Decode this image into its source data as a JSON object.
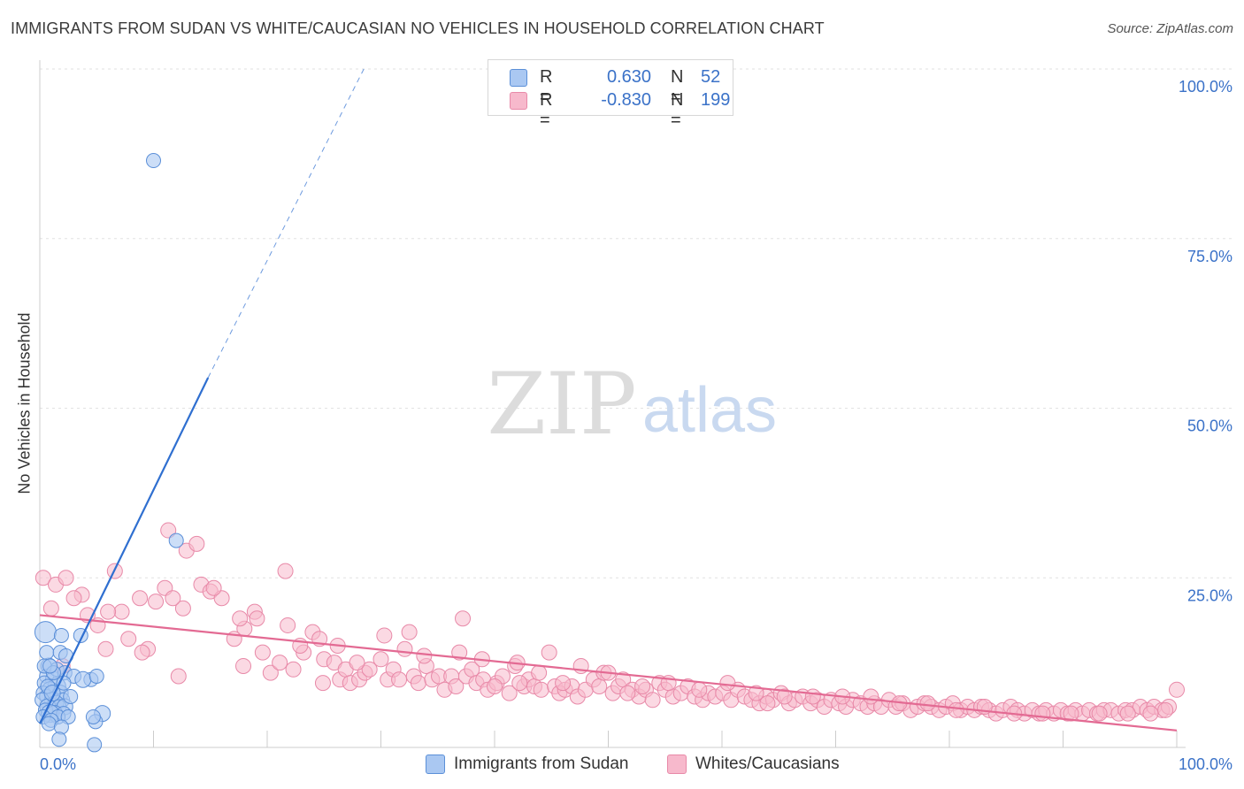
{
  "title": "IMMIGRANTS FROM SUDAN VS WHITE/CAUCASIAN NO VEHICLES IN HOUSEHOLD CORRELATION CHART",
  "source": "Source: ZipAtlas.com",
  "watermark": {
    "zip": "ZIP",
    "atlas": "atlas"
  },
  "colors": {
    "blue_fill": "#aac8f2",
    "blue_stroke": "#5b8fd8",
    "blue_line": "#2f6fd0",
    "pink_fill": "#f7b9cc",
    "pink_stroke": "#e889a8",
    "pink_line": "#e36a93",
    "axis_text": "#3b72c8",
    "grid": "#e2e2e2"
  },
  "legend": {
    "rows": [
      {
        "r_label": "R =",
        "r_value": "0.630",
        "n_label": "N =",
        "n_value": "52",
        "color": "#aac8f2"
      },
      {
        "r_label": "R =",
        "r_value": "-0.830",
        "n_label": "N =",
        "n_value": "199",
        "color": "#f7b9cc"
      }
    ]
  },
  "bottom_legend": [
    {
      "label": "Immigrants from Sudan",
      "color": "#aac8f2"
    },
    {
      "label": "Whites/Caucasians",
      "color": "#f7b9cc"
    }
  ],
  "chart_data": {
    "type": "scatter",
    "title": "IMMIGRANTS FROM SUDAN VS WHITE/CAUCASIAN NO VEHICLES IN HOUSEHOLD CORRELATION CHART",
    "xlabel": "",
    "ylabel": "No Vehicles in Household",
    "xlim": [
      0,
      100
    ],
    "ylim": [
      0,
      100
    ],
    "x_tick_labels": [
      "0.0%",
      "100.0%"
    ],
    "y_ticks": [
      25,
      50,
      75,
      100
    ],
    "y_tick_labels": [
      "25.0%",
      "50.0%",
      "75.0%",
      "100.0%"
    ],
    "grid": true,
    "series": [
      {
        "name": "Immigrants from Sudan",
        "r": 0.63,
        "n": 52,
        "trend": {
          "x0": 0.0,
          "y0": 3.5,
          "x1": 14.8,
          "y1": 54.5,
          "dash_x1": 28.5,
          "dash_y1": 100
        },
        "points": [
          [
            0.5,
            17.0,
            12
          ],
          [
            0.8,
            12.0,
            9
          ],
          [
            0.6,
            10.5,
            8
          ],
          [
            1.2,
            10.0,
            9
          ],
          [
            0.4,
            9.5,
            8
          ],
          [
            1.5,
            9.0,
            10
          ],
          [
            0.9,
            8.5,
            9
          ],
          [
            0.3,
            8.0,
            8
          ],
          [
            1.8,
            8.0,
            9
          ],
          [
            0.6,
            7.5,
            8
          ],
          [
            1.1,
            7.0,
            9
          ],
          [
            0.2,
            7.0,
            8
          ],
          [
            2.0,
            7.0,
            8
          ],
          [
            1.4,
            6.5,
            9
          ],
          [
            0.7,
            6.0,
            9
          ],
          [
            1.7,
            6.0,
            8
          ],
          [
            2.2,
            6.0,
            9
          ],
          [
            0.5,
            5.5,
            8
          ],
          [
            1.3,
            5.0,
            9
          ],
          [
            0.9,
            5.0,
            10
          ],
          [
            2.1,
            5.0,
            8
          ],
          [
            0.3,
            4.5,
            8
          ],
          [
            1.6,
            4.5,
            8
          ],
          [
            1.0,
            4.0,
            8
          ],
          [
            2.5,
            4.5,
            8
          ],
          [
            0.8,
            3.5,
            8
          ],
          [
            1.9,
            3.0,
            8
          ],
          [
            1.7,
            1.2,
            8
          ],
          [
            4.8,
            0.4,
            8
          ],
          [
            0.6,
            14.0,
            8
          ],
          [
            1.8,
            14.0,
            8
          ],
          [
            2.3,
            13.5,
            8
          ],
          [
            1.5,
            11.5,
            8
          ],
          [
            2.2,
            11.0,
            8
          ],
          [
            3.0,
            10.5,
            8
          ],
          [
            4.5,
            10.0,
            8
          ],
          [
            3.8,
            10.0,
            9
          ],
          [
            5.0,
            10.5,
            8
          ],
          [
            3.6,
            16.5,
            8
          ],
          [
            1.9,
            16.5,
            8
          ],
          [
            5.5,
            5.0,
            9
          ],
          [
            0.4,
            12.0,
            8
          ],
          [
            1.2,
            11.0,
            8
          ],
          [
            0.7,
            9.0,
            8
          ],
          [
            1.1,
            8.0,
            9
          ],
          [
            2.7,
            7.5,
            8
          ],
          [
            4.9,
            3.8,
            8
          ],
          [
            4.7,
            4.5,
            8
          ],
          [
            10.0,
            86.5,
            8
          ],
          [
            12.0,
            30.5,
            8
          ],
          [
            2.1,
            9.5,
            8
          ],
          [
            0.9,
            12.0,
            8
          ]
        ]
      },
      {
        "name": "Whites/Caucasians",
        "r": -0.83,
        "n": 199,
        "trend": {
          "x0": 0.0,
          "y0": 19.5,
          "x1": 100.0,
          "y1": 2.5
        },
        "points": [
          [
            0.3,
            25.0
          ],
          [
            1.4,
            24.0
          ],
          [
            2.3,
            25.0
          ],
          [
            3.7,
            22.5
          ],
          [
            5.1,
            18.0
          ],
          [
            6.6,
            26.0
          ],
          [
            7.2,
            20.0
          ],
          [
            8.8,
            22.0
          ],
          [
            9.5,
            14.5
          ],
          [
            10.2,
            21.5
          ],
          [
            11.0,
            23.5
          ],
          [
            11.3,
            32.0
          ],
          [
            12.6,
            20.5
          ],
          [
            12.9,
            29.0
          ],
          [
            13.8,
            30.0
          ],
          [
            14.2,
            24.0
          ],
          [
            15.0,
            23.0
          ],
          [
            16.0,
            22.0
          ],
          [
            17.1,
            16.0
          ],
          [
            18.0,
            17.5
          ],
          [
            18.9,
            20.0
          ],
          [
            19.6,
            14.0
          ],
          [
            20.3,
            11.0
          ],
          [
            21.1,
            12.5
          ],
          [
            21.6,
            26.0
          ],
          [
            22.3,
            11.5
          ],
          [
            23.2,
            14.0
          ],
          [
            24.0,
            17.0
          ],
          [
            24.6,
            16.0
          ],
          [
            25.0,
            13.0
          ],
          [
            25.9,
            12.5
          ],
          [
            26.4,
            10.0
          ],
          [
            26.9,
            11.5
          ],
          [
            27.3,
            9.5
          ],
          [
            28.1,
            10.0
          ],
          [
            28.6,
            11.0
          ],
          [
            29.0,
            11.5
          ],
          [
            30.0,
            13.0
          ],
          [
            30.6,
            10.0
          ],
          [
            31.1,
            11.5
          ],
          [
            31.6,
            10.0
          ],
          [
            32.1,
            14.5
          ],
          [
            32.9,
            10.5
          ],
          [
            33.3,
            9.5
          ],
          [
            34.0,
            12.0
          ],
          [
            34.5,
            10.0
          ],
          [
            35.1,
            10.5
          ],
          [
            35.6,
            8.5
          ],
          [
            36.2,
            10.5
          ],
          [
            36.6,
            9.0
          ],
          [
            37.5,
            10.5
          ],
          [
            38.0,
            11.5
          ],
          [
            38.4,
            9.5
          ],
          [
            39.0,
            10.0
          ],
          [
            39.4,
            8.5
          ],
          [
            40.2,
            9.5
          ],
          [
            40.7,
            10.5
          ],
          [
            41.3,
            8.0
          ],
          [
            41.8,
            12.0
          ],
          [
            42.6,
            9.0
          ],
          [
            43.0,
            10.0
          ],
          [
            43.5,
            9.0
          ],
          [
            44.1,
            8.5
          ],
          [
            44.8,
            14.0
          ],
          [
            45.3,
            9.0
          ],
          [
            45.7,
            8.0
          ],
          [
            46.2,
            8.5
          ],
          [
            46.8,
            9.0
          ],
          [
            47.3,
            7.5
          ],
          [
            48.0,
            8.5
          ],
          [
            48.7,
            10.0
          ],
          [
            49.2,
            9.0
          ],
          [
            49.6,
            11.0
          ],
          [
            50.4,
            8.0
          ],
          [
            50.9,
            9.0
          ],
          [
            51.3,
            10.0
          ],
          [
            52.1,
            8.5
          ],
          [
            52.7,
            7.5
          ],
          [
            53.3,
            8.5
          ],
          [
            53.9,
            7.0
          ],
          [
            54.5,
            9.5
          ],
          [
            55.0,
            8.5
          ],
          [
            55.7,
            7.5
          ],
          [
            56.4,
            8.0
          ],
          [
            57.0,
            9.0
          ],
          [
            57.6,
            7.5
          ],
          [
            58.3,
            7.0
          ],
          [
            58.8,
            8.0
          ],
          [
            59.4,
            7.5
          ],
          [
            60.1,
            8.0
          ],
          [
            60.8,
            7.0
          ],
          [
            61.4,
            8.5
          ],
          [
            62.0,
            7.5
          ],
          [
            62.6,
            7.0
          ],
          [
            63.3,
            6.5
          ],
          [
            63.9,
            7.5
          ],
          [
            64.5,
            7.0
          ],
          [
            65.2,
            8.0
          ],
          [
            65.9,
            6.5
          ],
          [
            66.4,
            7.0
          ],
          [
            67.1,
            7.5
          ],
          [
            67.8,
            6.5
          ],
          [
            68.4,
            7.0
          ],
          [
            69.0,
            6.0
          ],
          [
            69.6,
            7.0
          ],
          [
            70.3,
            6.5
          ],
          [
            70.9,
            6.0
          ],
          [
            71.5,
            7.0
          ],
          [
            72.2,
            6.5
          ],
          [
            72.8,
            6.0
          ],
          [
            73.4,
            6.5
          ],
          [
            74.0,
            6.0
          ],
          [
            74.7,
            7.0
          ],
          [
            75.3,
            6.0
          ],
          [
            75.9,
            6.5
          ],
          [
            76.6,
            5.5
          ],
          [
            77.2,
            6.0
          ],
          [
            77.8,
            6.5
          ],
          [
            78.4,
            6.0
          ],
          [
            79.1,
            5.5
          ],
          [
            79.7,
            6.0
          ],
          [
            80.3,
            6.5
          ],
          [
            81.0,
            5.5
          ],
          [
            81.6,
            6.0
          ],
          [
            82.2,
            5.5
          ],
          [
            82.8,
            6.0
          ],
          [
            83.5,
            5.5
          ],
          [
            84.1,
            5.0
          ],
          [
            84.7,
            5.5
          ],
          [
            85.4,
            6.0
          ],
          [
            86.0,
            5.5
          ],
          [
            86.6,
            5.0
          ],
          [
            87.3,
            5.5
          ],
          [
            87.9,
            5.0
          ],
          [
            88.5,
            5.5
          ],
          [
            89.2,
            5.0
          ],
          [
            89.8,
            5.5
          ],
          [
            90.4,
            5.0
          ],
          [
            91.1,
            5.5
          ],
          [
            91.7,
            5.0
          ],
          [
            92.3,
            5.5
          ],
          [
            93.0,
            5.0
          ],
          [
            93.6,
            5.5
          ],
          [
            94.2,
            5.5
          ],
          [
            94.9,
            5.0
          ],
          [
            95.5,
            5.5
          ],
          [
            96.1,
            5.5
          ],
          [
            96.8,
            6.0
          ],
          [
            97.4,
            5.5
          ],
          [
            98.0,
            6.0
          ],
          [
            98.7,
            5.5
          ],
          [
            99.3,
            6.0
          ],
          [
            100.0,
            8.5
          ],
          [
            1.0,
            20.5
          ],
          [
            3.0,
            22.0
          ],
          [
            4.2,
            19.5
          ],
          [
            5.8,
            14.5
          ],
          [
            7.8,
            16.0
          ],
          [
            9.0,
            14.0
          ],
          [
            12.2,
            10.5
          ],
          [
            15.3,
            23.5
          ],
          [
            17.9,
            12.0
          ],
          [
            19.1,
            19.0
          ],
          [
            22.9,
            15.0
          ],
          [
            24.9,
            9.5
          ],
          [
            27.9,
            12.5
          ],
          [
            30.3,
            16.5
          ],
          [
            33.8,
            13.5
          ],
          [
            36.9,
            14.0
          ],
          [
            38.9,
            13.0
          ],
          [
            40.0,
            9.0
          ],
          [
            42.2,
            9.5
          ],
          [
            43.9,
            11.0
          ],
          [
            46.0,
            9.5
          ],
          [
            47.6,
            12.0
          ],
          [
            50.0,
            11.0
          ],
          [
            51.7,
            8.0
          ],
          [
            55.3,
            9.5
          ],
          [
            58.0,
            8.5
          ],
          [
            60.5,
            9.5
          ],
          [
            63.0,
            8.0
          ],
          [
            65.5,
            7.5
          ],
          [
            68.0,
            7.5
          ],
          [
            70.6,
            7.5
          ],
          [
            73.1,
            7.5
          ],
          [
            75.6,
            6.5
          ],
          [
            78.1,
            6.5
          ],
          [
            80.6,
            5.5
          ],
          [
            83.1,
            6.0
          ],
          [
            85.7,
            5.0
          ],
          [
            88.2,
            5.0
          ],
          [
            90.7,
            5.0
          ],
          [
            93.2,
            5.0
          ],
          [
            95.7,
            5.0
          ],
          [
            97.7,
            5.0
          ],
          [
            99.0,
            5.5
          ],
          [
            2.0,
            12.0
          ],
          [
            6.0,
            20.0
          ],
          [
            11.7,
            22.0
          ],
          [
            17.6,
            19.0
          ],
          [
            21.8,
            18.0
          ],
          [
            26.2,
            15.0
          ],
          [
            32.5,
            17.0
          ],
          [
            37.2,
            19.0
          ],
          [
            42.0,
            12.5
          ],
          [
            53.0,
            9.0
          ],
          [
            64.0,
            6.5
          ]
        ]
      }
    ]
  }
}
